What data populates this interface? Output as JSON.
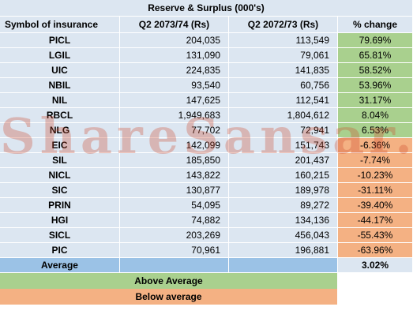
{
  "title": "Reserve & Surplus  (000's)",
  "headers": [
    "Symbol of insurance",
    "Q2 2073/74  (Rs)",
    "Q2 2072/73  (Rs)",
    "% change"
  ],
  "rows": [
    {
      "symbol": "PICL",
      "q2_2073": "204,035",
      "q2_2072": "113,549",
      "change": "79.69%",
      "status": "above"
    },
    {
      "symbol": "LGIL",
      "q2_2073": "131,090",
      "q2_2072": "79,061",
      "change": "65.81%",
      "status": "above"
    },
    {
      "symbol": "UIC",
      "q2_2073": "224,835",
      "q2_2072": "141,835",
      "change": "58.52%",
      "status": "above"
    },
    {
      "symbol": "NBIL",
      "q2_2073": "93,540",
      "q2_2072": "60,756",
      "change": "53.96%",
      "status": "above"
    },
    {
      "symbol": "NIL",
      "q2_2073": "147,625",
      "q2_2072": "112,541",
      "change": "31.17%",
      "status": "above"
    },
    {
      "symbol": "RBCL",
      "q2_2073": "1,949,683",
      "q2_2072": "1,804,612",
      "change": "8.04%",
      "status": "above"
    },
    {
      "symbol": "NLG",
      "q2_2073": "77,702",
      "q2_2072": "72,941",
      "change": "6.53%",
      "status": "above"
    },
    {
      "symbol": "EIC",
      "q2_2073": "142,099",
      "q2_2072": "151,743",
      "change": "-6.36%",
      "status": "below"
    },
    {
      "symbol": "SIL",
      "q2_2073": "185,850",
      "q2_2072": "201,437",
      "change": "-7.74%",
      "status": "below"
    },
    {
      "symbol": "NICL",
      "q2_2073": "143,822",
      "q2_2072": "160,215",
      "change": "-10.23%",
      "status": "below"
    },
    {
      "symbol": "SIC",
      "q2_2073": "130,877",
      "q2_2072": "189,978",
      "change": "-31.11%",
      "status": "below"
    },
    {
      "symbol": "PRIN",
      "q2_2073": "54,095",
      "q2_2072": "89,272",
      "change": "-39.40%",
      "status": "below"
    },
    {
      "symbol": "HGI",
      "q2_2073": "74,882",
      "q2_2072": "134,136",
      "change": "-44.17%",
      "status": "below"
    },
    {
      "symbol": "SICL",
      "q2_2073": "203,269",
      "q2_2072": "456,043",
      "change": "-55.43%",
      "status": "below"
    },
    {
      "symbol": "PIC",
      "q2_2073": "70,961",
      "q2_2072": "196,881",
      "change": "-63.96%",
      "status": "below"
    }
  ],
  "average": {
    "label": "Average",
    "value": "3.02%"
  },
  "legend": {
    "above": "Above Average",
    "below": "Below average"
  },
  "watermark": "ShareSansar.com",
  "colors": {
    "header_bg": "#dce6f1",
    "above": "#a9d08e",
    "below": "#f4b183",
    "average_bg": "#9bc2e6"
  }
}
